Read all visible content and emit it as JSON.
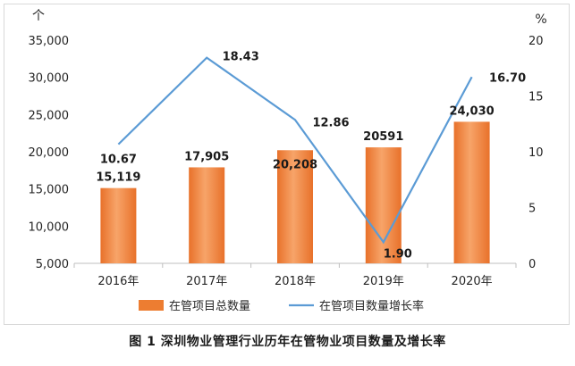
{
  "chart_data": {
    "type": "bar",
    "categories": [
      "2016年",
      "2017年",
      "2018年",
      "2019年",
      "2020年"
    ],
    "series": [
      {
        "name": "在管项目总数量",
        "kind": "bar",
        "axis": "left",
        "values": [
          15119,
          17905,
          20208,
          20591,
          24030
        ],
        "labels": [
          "15,119",
          "17,905",
          "20,208",
          "20591",
          "24,030"
        ],
        "color": "#ed7d31"
      },
      {
        "name": "在管项目数量增长率",
        "kind": "line",
        "axis": "right",
        "values": [
          10.67,
          18.43,
          12.86,
          1.9,
          16.7
        ],
        "labels": [
          "10.67",
          "18.43",
          "12.86",
          "1.90",
          "16.70"
        ],
        "color": "#5b9bd5"
      }
    ],
    "y_left": {
      "unit": "个",
      "ylim": [
        5000,
        35000
      ],
      "ticks": [
        "5,000",
        "10,000",
        "15,000",
        "20,000",
        "25,000",
        "30,000",
        "35,000"
      ]
    },
    "y_right": {
      "unit": "%",
      "ylim": [
        0,
        20
      ],
      "ticks": [
        "0",
        "5",
        "10",
        "15",
        "20"
      ]
    },
    "grid": false,
    "legend": "bottom"
  },
  "caption": "图 1  深圳物业管理行业历年在管物业项目数量及增长率"
}
